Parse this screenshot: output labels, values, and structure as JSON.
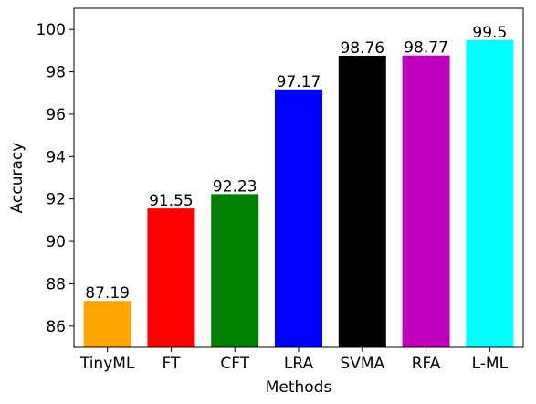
{
  "chart_data": {
    "type": "bar",
    "title": "",
    "xlabel": "Methods",
    "ylabel": "Accuracy",
    "categories": [
      "TinyML",
      "FT",
      "CFT",
      "LRA",
      "SVMA",
      "RFA",
      "L-ML"
    ],
    "values": [
      87.19,
      91.55,
      92.23,
      97.17,
      98.76,
      98.77,
      99.5
    ],
    "value_labels": [
      "87.19",
      "91.55",
      "92.23",
      "97.17",
      "98.76",
      "98.77",
      "99.5"
    ],
    "colors": [
      "#ffa500",
      "#ff0000",
      "#008000",
      "#0000ff",
      "#000000",
      "#bf00bf",
      "#00ffff"
    ],
    "ylim": [
      85,
      101
    ],
    "yticks": [
      86,
      88,
      90,
      92,
      94,
      96,
      98,
      100
    ],
    "grid": false,
    "legend": "none"
  }
}
